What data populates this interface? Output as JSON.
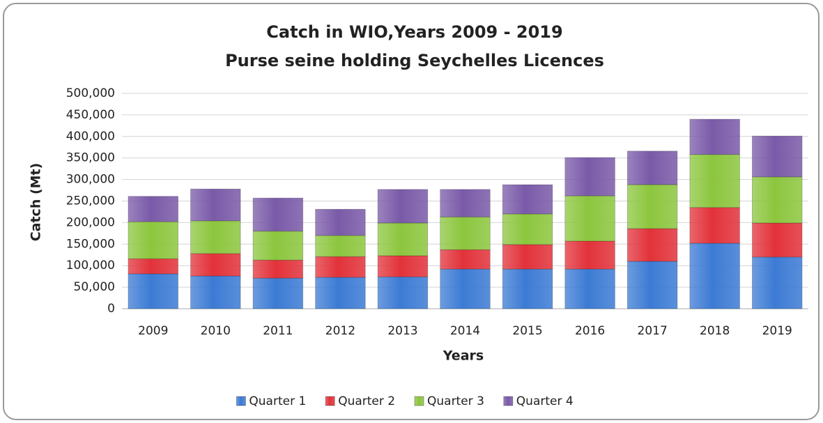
{
  "chart_data": {
    "type": "stacked_bar",
    "title": "Catch in WIO,Years 2009 - 2019",
    "subtitle": "Purse seine holding Seychelles Licences",
    "x_label": "Years",
    "y_label": "Catch (Mt)",
    "categories": [
      "2009",
      "2010",
      "2011",
      "2012",
      "2013",
      "2014",
      "2015",
      "2016",
      "2017",
      "2018",
      "2019"
    ],
    "series": [
      {
        "name": "Quarter 1",
        "color": "#3c7bd4",
        "values": [
          81000,
          76000,
          71000,
          73000,
          74000,
          92000,
          92000,
          92000,
          110000,
          152000,
          120000
        ]
      },
      {
        "name": "Quarter 2",
        "color": "#e2323a",
        "values": [
          35000,
          52000,
          42000,
          48000,
          49000,
          45000,
          57000,
          65000,
          76000,
          83000,
          79000
        ]
      },
      {
        "name": "Quarter 3",
        "color": "#8cc63e",
        "values": [
          86000,
          76000,
          67000,
          49000,
          76000,
          76000,
          71000,
          105000,
          102000,
          123000,
          107000
        ]
      },
      {
        "name": "Quarter 4",
        "color": "#7a5aa8",
        "values": [
          59000,
          74000,
          77000,
          61000,
          78000,
          64000,
          68000,
          89000,
          78000,
          82000,
          95000
        ]
      }
    ],
    "ylim": [
      0,
      500000
    ],
    "yticks": [
      0,
      {
        "value": 50000,
        "label": "50,000"
      },
      {
        "value": 100000,
        "label": "100,000"
      },
      {
        "value": 150000,
        "label": "150,000"
      },
      {
        "value": 200000,
        "label": "200,000"
      },
      {
        "value": 250000,
        "label": "250,000"
      },
      {
        "value": 300000,
        "label": "300,000"
      },
      {
        "value": 350000,
        "label": "350,000"
      },
      {
        "value": 400000,
        "label": "400,000"
      },
      {
        "value": 450000,
        "label": "450,000"
      },
      {
        "value": 500000,
        "label": "500,000"
      }
    ],
    "grid": true,
    "legend": "bottom"
  }
}
